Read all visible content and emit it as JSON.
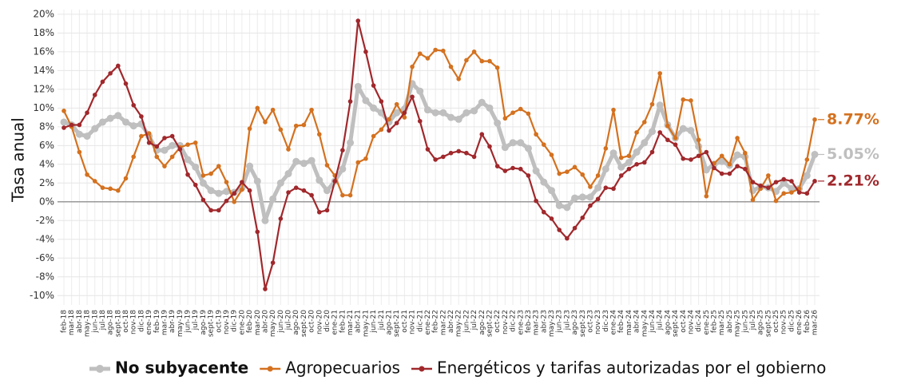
{
  "chart_data": {
    "type": "line",
    "y_label": "Tasa anual",
    "categories": [
      "feb-18",
      "mar-18",
      "abr-18",
      "may-18",
      "jun-18",
      "jul-18",
      "ago-18",
      "sept-18",
      "oct-18",
      "nov-18",
      "dic-18",
      "ene-19",
      "feb-19",
      "mar-19",
      "abr-19",
      "may-19",
      "jun-19",
      "jul-19",
      "ago-19",
      "sept-19",
      "oct-19",
      "nov-19",
      "dic-19",
      "ene-20",
      "feb-20",
      "mar-20",
      "abr-20",
      "may-20",
      "jun-20",
      "jul-20",
      "ago-20",
      "sept-20",
      "oct-20",
      "nov-20",
      "dic-20",
      "ene-21",
      "feb-21",
      "mar-21",
      "abr-21",
      "may-21",
      "jun-21",
      "jul-21",
      "ago-21",
      "sept-21",
      "oct-21",
      "nov-21",
      "dic-21",
      "ene-22",
      "feb-22",
      "mar-22",
      "abr-22",
      "may-22",
      "jun-22",
      "jul-22",
      "ago-22",
      "sept-22",
      "oct-22",
      "nov-22",
      "dic-22",
      "ene-23",
      "feb-23",
      "mar-23",
      "abr-23",
      "may-23",
      "jun-23",
      "jul-23",
      "ago-23",
      "sept-23",
      "oct-23",
      "nov-23",
      "dic-23",
      "ene-24",
      "feb-24",
      "mar-24",
      "abr-24",
      "may-24",
      "jun-24",
      "jul-24",
      "ago-24",
      "sept-24",
      "oct-24",
      "nov-24",
      "dic-24",
      "ene-25",
      "feb-25",
      "mar-25",
      "abr-25",
      "may-25",
      "jun-25",
      "jul-25",
      "ago-25",
      "sept-25",
      "oct-25",
      "nov-25",
      "dic-25",
      "ene-26",
      "feb-26",
      "mar-26"
    ],
    "series": [
      {
        "name": "No subyacente",
        "color": "#bfbfbf",
        "values": [
          8.5,
          8.2,
          7.2,
          7.0,
          7.8,
          8.5,
          8.9,
          9.2,
          8.5,
          8.1,
          8.3,
          7.0,
          5.5,
          5.5,
          6.0,
          6.0,
          4.5,
          3.7,
          2.0,
          1.2,
          0.9,
          1.1,
          1.0,
          1.5,
          3.8,
          2.2,
          -2.0,
          0.3,
          2.0,
          3.0,
          4.3,
          4.1,
          4.4,
          2.3,
          1.2,
          2.2,
          3.5,
          6.3,
          12.3,
          10.8,
          10.0,
          9.5,
          8.5,
          9.5,
          9.9,
          12.6,
          11.8,
          9.8,
          9.5,
          9.5,
          9.0,
          8.8,
          9.5,
          9.7,
          10.6,
          10.0,
          8.4,
          5.8,
          6.3,
          6.3,
          5.7,
          3.3,
          2.1,
          1.2,
          -0.4,
          -0.6,
          0.4,
          0.5,
          0.5,
          1.5,
          3.5,
          5.2,
          3.7,
          4.2,
          5.3,
          6.3,
          7.5,
          10.3,
          8.2,
          6.8,
          7.8,
          7.6,
          5.9,
          3.4,
          4.0,
          4.3,
          3.9,
          5.0,
          4.8,
          1.2,
          1.6,
          1.5,
          1.1,
          2.0,
          1.4,
          1.4,
          2.8,
          5.05
        ],
        "value_labels": [
          null,
          null,
          null,
          null,
          null,
          null,
          null,
          null,
          null,
          null,
          null,
          null,
          null,
          null,
          null,
          null,
          null,
          null,
          null,
          null,
          null,
          null,
          null,
          null,
          null,
          null,
          null,
          null,
          null,
          null,
          null,
          null,
          null,
          null,
          null,
          null,
          null,
          null,
          null,
          null,
          null,
          null,
          null,
          null,
          null,
          null,
          null,
          null,
          null,
          null,
          null,
          null,
          null,
          null,
          null,
          null,
          null,
          null,
          null,
          null,
          null,
          null,
          null,
          null,
          null,
          null,
          null,
          null,
          null,
          null,
          null,
          null,
          null,
          null,
          null,
          null,
          null,
          null,
          null,
          null,
          null,
          null,
          null,
          null,
          null,
          null,
          null,
          null,
          null,
          null,
          null,
          null,
          null,
          null,
          null,
          null,
          null,
          "5.05%"
        ]
      },
      {
        "name": "Agropecuarios",
        "color": "#d4711f",
        "values": [
          9.7,
          8.0,
          5.3,
          2.9,
          2.2,
          1.5,
          1.4,
          1.2,
          2.5,
          4.8,
          7.0,
          7.3,
          4.8,
          3.8,
          4.8,
          5.8,
          6.1,
          6.3,
          2.8,
          3.0,
          3.8,
          2.1,
          0.0,
          1.3,
          7.8,
          10.0,
          8.5,
          9.8,
          7.7,
          5.6,
          8.1,
          8.2,
          9.8,
          7.2,
          3.9,
          2.8,
          0.7,
          0.7,
          4.2,
          4.6,
          7.0,
          7.7,
          8.8,
          10.4,
          9.0,
          14.4,
          15.8,
          15.3,
          16.2,
          16.1,
          14.4,
          13.1,
          15.1,
          16.0,
          15.0,
          15.0,
          14.3,
          8.9,
          9.5,
          9.9,
          9.4,
          7.2,
          6.1,
          5.0,
          3.0,
          3.2,
          3.7,
          2.9,
          1.6,
          2.8,
          5.7,
          9.8,
          4.7,
          4.9,
          7.4,
          8.5,
          10.4,
          13.7,
          8.1,
          6.8,
          10.9,
          10.8,
          6.6,
          0.6,
          4.1,
          4.9,
          4.0,
          6.8,
          5.2,
          0.2,
          1.4,
          2.8,
          0.1,
          0.9,
          1.0,
          1.4,
          4.5,
          8.77
        ],
        "value_labels": [
          null,
          null,
          null,
          null,
          null,
          null,
          null,
          null,
          null,
          null,
          null,
          null,
          null,
          null,
          null,
          null,
          null,
          null,
          null,
          null,
          null,
          null,
          null,
          null,
          null,
          null,
          null,
          null,
          null,
          null,
          null,
          null,
          null,
          null,
          null,
          null,
          null,
          null,
          null,
          null,
          null,
          null,
          null,
          null,
          null,
          null,
          null,
          null,
          null,
          null,
          null,
          null,
          null,
          null,
          null,
          null,
          null,
          null,
          null,
          null,
          null,
          null,
          null,
          null,
          null,
          null,
          null,
          null,
          null,
          null,
          null,
          null,
          null,
          null,
          null,
          null,
          null,
          null,
          null,
          null,
          null,
          null,
          null,
          null,
          null,
          null,
          null,
          null,
          null,
          null,
          null,
          null,
          null,
          null,
          null,
          null,
          null,
          "8.77%"
        ]
      },
      {
        "name": "Energéticos y tarifas autorizadas por el gobierno",
        "color": "#a0282c",
        "values": [
          7.9,
          8.2,
          8.2,
          9.5,
          11.4,
          12.8,
          13.7,
          14.5,
          12.6,
          10.3,
          9.1,
          6.3,
          5.9,
          6.8,
          7.0,
          5.6,
          2.9,
          1.8,
          0.2,
          -0.9,
          -0.9,
          0.1,
          0.9,
          2.1,
          1.2,
          -3.2,
          -9.3,
          -6.5,
          -1.8,
          1.0,
          1.5,
          1.2,
          0.7,
          -1.1,
          -0.9,
          2.2,
          5.5,
          10.7,
          19.3,
          16.0,
          12.4,
          10.7,
          7.6,
          8.4,
          9.5,
          11.2,
          8.6,
          5.6,
          4.5,
          4.8,
          5.2,
          5.4,
          5.2,
          4.8,
          7.2,
          5.9,
          3.8,
          3.3,
          3.6,
          3.5,
          2.8,
          0.1,
          -1.1,
          -1.8,
          -3.0,
          -3.9,
          -2.8,
          -1.7,
          -0.4,
          0.3,
          1.5,
          1.4,
          2.8,
          3.5,
          4.0,
          4.2,
          5.3,
          7.4,
          6.6,
          6.1,
          4.6,
          4.5,
          4.9,
          5.3,
          3.6,
          3.0,
          3.0,
          3.8,
          3.5,
          2.1,
          1.7,
          1.5,
          2.1,
          2.4,
          2.2,
          1.0,
          0.9,
          2.21
        ],
        "value_labels": [
          null,
          null,
          null,
          null,
          null,
          null,
          null,
          null,
          null,
          null,
          null,
          null,
          null,
          null,
          null,
          null,
          null,
          null,
          null,
          null,
          null,
          null,
          null,
          null,
          null,
          null,
          null,
          null,
          null,
          null,
          null,
          null,
          null,
          null,
          null,
          null,
          null,
          null,
          null,
          null,
          null,
          null,
          null,
          null,
          null,
          null,
          null,
          null,
          null,
          null,
          null,
          null,
          null,
          null,
          null,
          null,
          null,
          null,
          null,
          null,
          null,
          null,
          null,
          null,
          null,
          null,
          null,
          null,
          null,
          null,
          null,
          null,
          null,
          null,
          null,
          null,
          null,
          null,
          null,
          null,
          null,
          null,
          null,
          null,
          null,
          null,
          null,
          null,
          null,
          null,
          null,
          null,
          null,
          null,
          null,
          null,
          null,
          "2.21%"
        ]
      }
    ],
    "ylim": [
      -11,
      20.5
    ],
    "yticks": [
      {
        "value": -10,
        "label": "-10%"
      },
      {
        "value": -8,
        "label": "-8%"
      },
      {
        "value": -6,
        "label": "-6%"
      },
      {
        "value": -4,
        "label": "-4%"
      },
      {
        "value": -2,
        "label": "-2%"
      },
      {
        "value": 0,
        "label": "0%"
      },
      {
        "value": 2,
        "label": "2%"
      },
      {
        "value": 4,
        "label": "4%"
      },
      {
        "value": 6,
        "label": "6%"
      },
      {
        "value": 8,
        "label": "8%"
      },
      {
        "value": 10,
        "label": "10%"
      },
      {
        "value": 12,
        "label": "12%"
      },
      {
        "value": 14,
        "label": "14%"
      },
      {
        "value": 16,
        "label": "16%"
      },
      {
        "value": 18,
        "label": "18%"
      },
      {
        "value": 20,
        "label": "20%"
      }
    ],
    "grid": true,
    "legend": "bottom"
  }
}
